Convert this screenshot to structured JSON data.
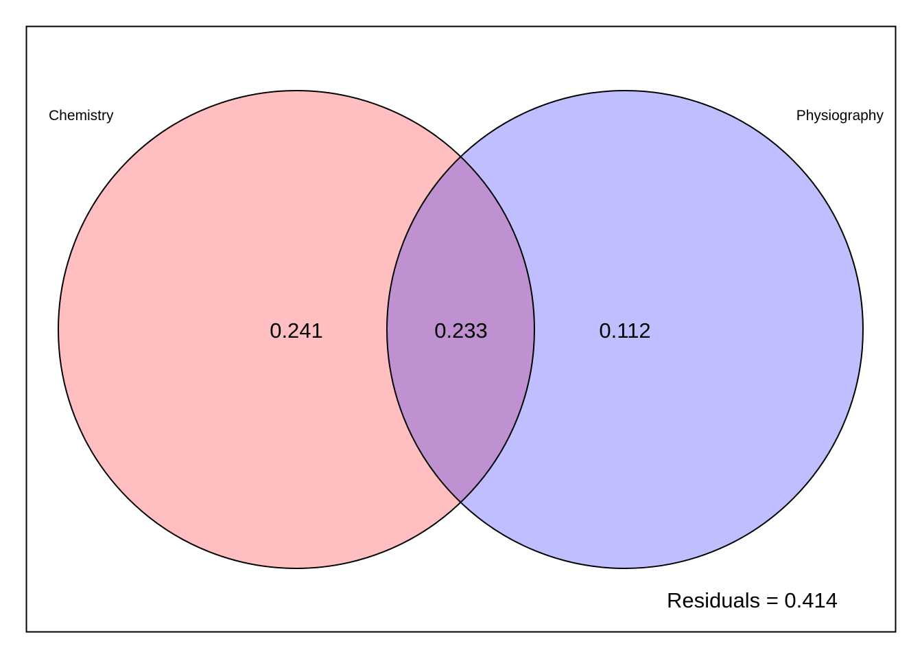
{
  "sets": {
    "left": {
      "label": "Chemistry",
      "color": "#ffbfc0"
    },
    "right": {
      "label": "Physiography",
      "color": "#bfbfff"
    },
    "overlap_color": "#bf91d0"
  },
  "values": {
    "left_only": "0.241",
    "overlap": "0.233",
    "right_only": "0.112"
  },
  "residuals": {
    "text": "Residuals = 0.414"
  }
}
